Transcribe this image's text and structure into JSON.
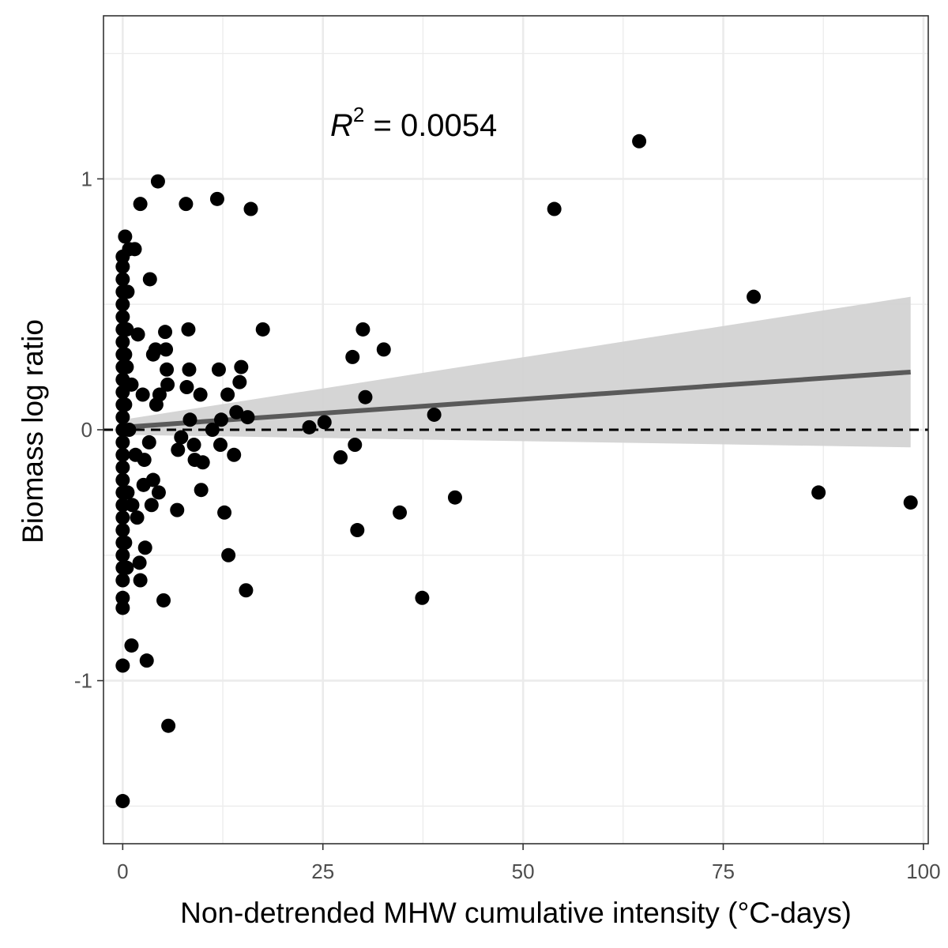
{
  "chart_data": {
    "type": "scatter",
    "title": "",
    "xlabel": "Non-detrended MHW cumulative intensity (°C-days)",
    "ylabel": "Biomass log ratio",
    "xlim": [
      -2.4,
      100.6
    ],
    "ylim": [
      -1.65,
      1.65
    ],
    "x_ticks": [
      0,
      25,
      50,
      75,
      100
    ],
    "x_tick_labels": [
      "0",
      "25",
      "50",
      "75",
      "100"
    ],
    "y_ticks": [
      -1,
      0,
      1
    ],
    "y_tick_labels": [
      "-1",
      "0",
      "1"
    ],
    "x_minor_grid": [
      12.5,
      37.5,
      62.5,
      87.5
    ],
    "y_minor_grid": [
      -1.5,
      -0.5,
      0.5,
      1.5
    ],
    "grid": true,
    "reference_line": {
      "y": 0,
      "style": "dashed"
    },
    "annotation": {
      "symbol": "R",
      "superscript": "2",
      "text": " = 0.0054"
    },
    "regression": {
      "x_start": 0,
      "x_end": 98.4,
      "y_start": 0.01,
      "y_end": 0.23,
      "ci_lower_start": -0.02,
      "ci_upper_start": 0.04,
      "ci_lower_end": -0.07,
      "ci_upper_end": 0.53
    },
    "colors": {
      "points": "#000000",
      "fit_line": "#4d4d4d",
      "ci_band": "#d3d3d3",
      "grid": "#ebebeb",
      "panel_border": "#333333",
      "tick_text": "#4d4d4d"
    },
    "series": [
      {
        "points": [
          [
            0,
            -1.48
          ],
          [
            0,
            -0.94
          ],
          [
            0,
            -0.71
          ],
          [
            0,
            -0.67
          ],
          [
            0,
            -0.6
          ],
          [
            0,
            -0.55
          ],
          [
            0,
            -0.5
          ],
          [
            0,
            -0.45
          ],
          [
            0,
            -0.4
          ],
          [
            0,
            -0.35
          ],
          [
            0,
            -0.3
          ],
          [
            0,
            -0.25
          ],
          [
            0,
            -0.2
          ],
          [
            0,
            -0.15
          ],
          [
            0,
            -0.1
          ],
          [
            0,
            -0.05
          ],
          [
            0,
            0.0
          ],
          [
            0,
            0.05
          ],
          [
            0,
            0.1
          ],
          [
            0,
            0.15
          ],
          [
            0,
            0.2
          ],
          [
            0,
            0.25
          ],
          [
            0,
            0.3
          ],
          [
            0,
            0.35
          ],
          [
            0,
            0.4
          ],
          [
            0,
            0.45
          ],
          [
            0,
            0.5
          ],
          [
            0,
            0.55
          ],
          [
            0,
            0.6
          ],
          [
            0,
            0.65
          ],
          [
            0,
            0.69
          ],
          [
            0.3,
            -0.45
          ],
          [
            0.3,
            0.1
          ],
          [
            0.3,
            0.3
          ],
          [
            0.5,
            -0.55
          ],
          [
            0.5,
            0.25
          ],
          [
            0.6,
            -0.25
          ],
          [
            0.6,
            0.55
          ],
          [
            0.8,
            0.0
          ],
          [
            0.8,
            0.72
          ],
          [
            0.3,
            0.77
          ],
          [
            0.5,
            0.4
          ],
          [
            1.1,
            -0.86
          ],
          [
            1.1,
            0.18
          ],
          [
            1.2,
            -0.3
          ],
          [
            1.5,
            0.72
          ],
          [
            1.6,
            -0.1
          ],
          [
            1.8,
            -0.35
          ],
          [
            1.9,
            0.38
          ],
          [
            2.1,
            -0.53
          ],
          [
            2.2,
            0.9
          ],
          [
            2.2,
            -0.6
          ],
          [
            2.5,
            0.14
          ],
          [
            2.6,
            -0.22
          ],
          [
            2.7,
            -0.12
          ],
          [
            2.8,
            -0.47
          ],
          [
            3.0,
            -0.92
          ],
          [
            3.3,
            -0.05
          ],
          [
            3.4,
            0.6
          ],
          [
            3.6,
            -0.3
          ],
          [
            3.8,
            0.3
          ],
          [
            3.8,
            -0.2
          ],
          [
            4.1,
            0.32
          ],
          [
            4.2,
            0.1
          ],
          [
            4.4,
            0.99
          ],
          [
            4.5,
            -0.25
          ],
          [
            4.6,
            0.14
          ],
          [
            5.1,
            -0.68
          ],
          [
            5.3,
            0.39
          ],
          [
            5.4,
            0.32
          ],
          [
            5.5,
            0.24
          ],
          [
            5.6,
            0.18
          ],
          [
            5.7,
            -1.18
          ],
          [
            6.8,
            -0.32
          ],
          [
            6.9,
            -0.08
          ],
          [
            7.3,
            -0.03
          ],
          [
            7.9,
            0.9
          ],
          [
            8.0,
            0.17
          ],
          [
            8.2,
            0.4
          ],
          [
            8.3,
            0.24
          ],
          [
            8.4,
            0.04
          ],
          [
            8.9,
            -0.06
          ],
          [
            9.0,
            -0.12
          ],
          [
            9.7,
            0.14
          ],
          [
            9.8,
            -0.24
          ],
          [
            10.0,
            -0.13
          ],
          [
            11.2,
            0.0
          ],
          [
            11.8,
            0.92
          ],
          [
            12.0,
            0.24
          ],
          [
            12.2,
            -0.06
          ],
          [
            12.3,
            0.04
          ],
          [
            12.7,
            -0.33
          ],
          [
            13.1,
            0.14
          ],
          [
            13.2,
            -0.5
          ],
          [
            13.9,
            -0.1
          ],
          [
            14.2,
            0.07
          ],
          [
            14.6,
            0.19
          ],
          [
            14.8,
            0.25
          ],
          [
            15.4,
            -0.64
          ],
          [
            15.6,
            0.05
          ],
          [
            16.0,
            0.88
          ],
          [
            17.5,
            0.4
          ],
          [
            23.3,
            0.01
          ],
          [
            25.2,
            0.03
          ],
          [
            27.2,
            -0.11
          ],
          [
            28.7,
            0.29
          ],
          [
            29.0,
            -0.06
          ],
          [
            29.3,
            -0.4
          ],
          [
            30.0,
            0.4
          ],
          [
            30.3,
            0.13
          ],
          [
            32.6,
            0.32
          ],
          [
            34.6,
            -0.33
          ],
          [
            37.4,
            -0.67
          ],
          [
            38.9,
            0.06
          ],
          [
            41.5,
            -0.27
          ],
          [
            53.9,
            0.88
          ],
          [
            64.5,
            1.15
          ],
          [
            78.8,
            0.53
          ],
          [
            86.9,
            -0.25
          ],
          [
            98.4,
            -0.29
          ]
        ]
      }
    ]
  }
}
